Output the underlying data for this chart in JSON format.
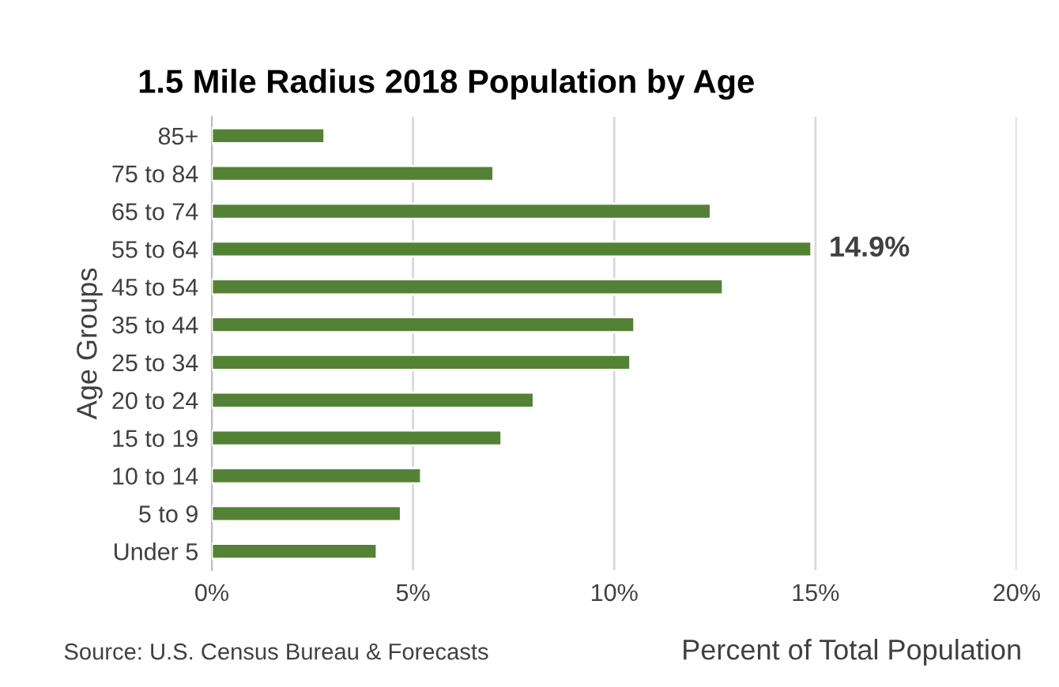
{
  "chart_data": {
    "type": "bar",
    "orientation": "horizontal",
    "title": "1.5 Mile Radius 2018 Population by Age",
    "xlabel": "Percent of Total Population",
    "ylabel": "Age Groups",
    "categories": [
      "85+",
      "75 to 84",
      "65 to 74",
      "55 to 64",
      "45 to 54",
      "35 to 44",
      "25 to 34",
      "20 to 24",
      "15 to 19",
      "10 to 14",
      "5 to 9",
      "Under 5"
    ],
    "values": [
      2.8,
      7.0,
      12.4,
      14.9,
      12.7,
      10.5,
      10.4,
      8.0,
      7.2,
      5.2,
      4.7,
      4.1
    ],
    "value_labels": [
      null,
      null,
      null,
      "14.9%",
      null,
      null,
      null,
      null,
      null,
      null,
      null,
      null
    ],
    "color": "#548235",
    "xlim": [
      0,
      20
    ],
    "xticks": [
      {
        "value": 0,
        "label": "0%"
      },
      {
        "value": 5,
        "label": "5%"
      },
      {
        "value": 10,
        "label": "10%"
      },
      {
        "value": 15,
        "label": "15%"
      },
      {
        "value": 20,
        "label": "20%"
      }
    ],
    "grid": "x",
    "legend": false,
    "annotations": [
      "Source: U.S. Census Bureau & Forecasts"
    ]
  }
}
